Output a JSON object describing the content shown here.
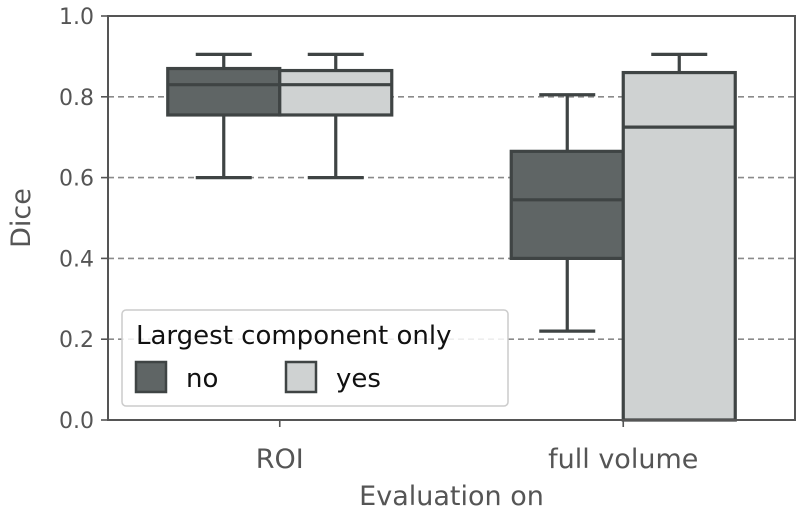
{
  "chart_data": {
    "type": "box",
    "xlabel": "Evaluation on",
    "ylabel": "Dice",
    "ylim": [
      0.0,
      1.0
    ],
    "yticks": [
      "0.0",
      "0.2",
      "0.4",
      "0.6",
      "0.8",
      "1.0"
    ],
    "grid": "horizontal dashed",
    "categories": [
      "ROI",
      "full volume"
    ],
    "legend": {
      "title": "Largest component only",
      "placement": "lower-left",
      "entries": [
        "no",
        "yes"
      ]
    },
    "series": [
      {
        "name": "no",
        "color": "#5f6565",
        "boxes": [
          {
            "category": "ROI",
            "whisker_low": 0.6,
            "q1": 0.755,
            "median": 0.83,
            "q3": 0.87,
            "whisker_high": 0.905
          },
          {
            "category": "full volume",
            "whisker_low": 0.22,
            "q1": 0.4,
            "median": 0.545,
            "q3": 0.665,
            "whisker_high": 0.805
          }
        ]
      },
      {
        "name": "yes",
        "color": "#cfd2d2",
        "boxes": [
          {
            "category": "ROI",
            "whisker_low": 0.6,
            "q1": 0.755,
            "median": 0.83,
            "q3": 0.865,
            "whisker_high": 0.905
          },
          {
            "category": "full volume",
            "whisker_low": 0.0,
            "q1": 0.0,
            "median": 0.725,
            "q3": 0.86,
            "whisker_high": 0.905
          }
        ]
      }
    ]
  },
  "colors": {
    "edge": "#3f4444",
    "grid": "#8a8a8a",
    "axis": "#555555"
  }
}
